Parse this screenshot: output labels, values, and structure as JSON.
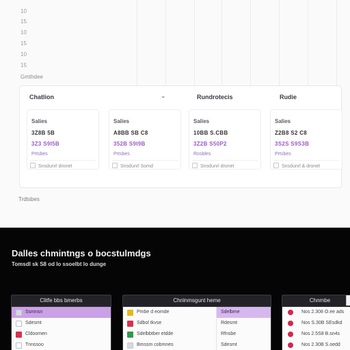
{
  "colors": {
    "accent": "#9b59c8",
    "dark_bg": "#050505",
    "selection": "#caa0e6"
  },
  "axis": {
    "ticks": [
      "10",
      "15",
      "10",
      "15",
      "10",
      "15",
      "10"
    ],
    "legend_label": "Gmthdee"
  },
  "columns": [
    {
      "header": "Chatlion",
      "has_chevron": true,
      "card": {
        "label": "Salies",
        "value": "3Z8B 5B",
        "accent": "3Z3 S9I5B",
        "link": "Prtsbes",
        "check": "Snsdunrl dronet"
      }
    },
    {
      "header": "",
      "has_chevron": false,
      "card": {
        "label": "Salies",
        "value": "A8BB SB C8",
        "accent": "352B S9I9B",
        "link": "Prtsbes",
        "check": "Snsdunrl Somd"
      }
    },
    {
      "header": "Rundrotecis",
      "has_chevron": false,
      "card": {
        "label": "Salies",
        "value": "10BB S.CBB",
        "accent": "3Z2B S50P2",
        "link": "Rosbles",
        "check": "Snsdunrl dronet"
      }
    },
    {
      "header": "Rudie",
      "has_chevron": false,
      "card": {
        "label": "Salies",
        "value": "Z2B8 S2 C8",
        "accent": "3S2S S9S3B",
        "link": "Prtsbes",
        "check": "Snsdunrl & dronet"
      }
    }
  ],
  "footer_note": "Trdtsbes",
  "dark": {
    "title": "Dalles chmintngs o bocstulmdgs",
    "subtitle": "Tomsdl sk S8 od lo ssoelbt lo dunge",
    "windows": [
      {
        "title": "Clitfe bbs bmerbs",
        "rows": [
          "Ssmnsn",
          "Sdesmt",
          "Cldoomen",
          "Tnnssoo"
        ]
      },
      {
        "title": "Chnlnmsgunt heme",
        "left_rows": [
          "Pmbe d eomde",
          "Sdbol tkvse",
          "Sdelbbtber etdde",
          "Bmssm cobmnes"
        ],
        "right_rows": [
          "Sdelbme",
          "Rdesmt",
          "Rfnsbe",
          "Sdesmt"
        ]
      },
      {
        "title": "Chnmbe",
        "rows": [
          "Nos 2.308 O.ee ads",
          "Nos S.30B SEsdkd",
          "Nos 2.5S8 B.sn4s",
          "Nos 2.30B S.oedd"
        ]
      }
    ]
  }
}
